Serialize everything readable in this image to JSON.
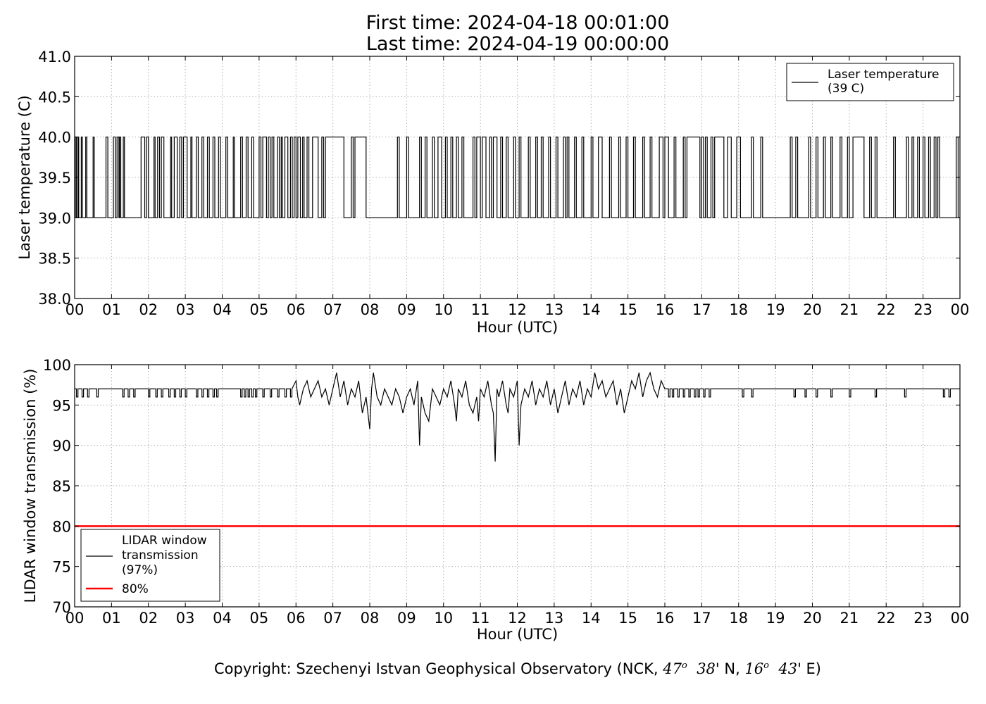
{
  "title": {
    "line1": "First time: 2024-04-18 00:01:00",
    "line2": "Last time: 2024-04-19 00:00:00"
  },
  "footer": {
    "text": "Copyright: Szechenyi Istvan Geophysical Observatory (NCK, 47° 38' N, 16° 43' E)",
    "prefix": "Copyright: Szechenyi Istvan Geophysical Observatory (NCK, ",
    "lat_deg": "47",
    "lat_min": "38' N, ",
    "lon_deg": "16",
    "lon_min": "43' E)",
    "degree_mark": "o"
  },
  "colors": {
    "series": "#000000",
    "threshold": "#ff0000",
    "grid": "#b0b0b0"
  },
  "chart_data": [
    {
      "type": "line",
      "name": "laser-temperature-panel",
      "xlabel": "Hour (UTC)",
      "ylabel": "Laser temperature (C)",
      "xlim": [
        0,
        24
      ],
      "ylim": [
        38.0,
        41.0
      ],
      "x_ticks": [
        "00",
        "01",
        "02",
        "03",
        "04",
        "05",
        "06",
        "07",
        "08",
        "09",
        "10",
        "11",
        "12",
        "13",
        "14",
        "15",
        "16",
        "17",
        "18",
        "19",
        "20",
        "21",
        "22",
        "23",
        "00"
      ],
      "y_ticks": [
        "38.0",
        "38.5",
        "39.0",
        "39.5",
        "40.0",
        "40.5",
        "41.0"
      ],
      "grid": true,
      "legend_position": "top-right",
      "legend": [
        "Laser temperature",
        "(39 C)"
      ],
      "series": [
        {
          "name": "Laser temperature (39 C)",
          "color": "#000000",
          "baseline": 39.0,
          "high": 40.0,
          "high_intervals": [
            [
              0.02,
              0.05
            ],
            [
              0.09,
              0.11
            ],
            [
              0.18,
              0.21
            ],
            [
              0.3,
              0.33
            ],
            [
              0.5,
              0.53
            ],
            [
              0.85,
              0.9
            ],
            [
              1.05,
              1.1
            ],
            [
              1.15,
              1.2
            ],
            [
              1.22,
              1.25
            ],
            [
              1.32,
              1.35
            ],
            [
              1.8,
              1.9
            ],
            [
              1.95,
              2.0
            ],
            [
              2.15,
              2.18
            ],
            [
              2.25,
              2.3
            ],
            [
              2.35,
              2.42
            ],
            [
              2.6,
              2.63
            ],
            [
              2.7,
              2.78
            ],
            [
              2.85,
              2.9
            ],
            [
              2.95,
              3.05
            ],
            [
              3.15,
              3.18
            ],
            [
              3.3,
              3.35
            ],
            [
              3.45,
              3.5
            ],
            [
              3.6,
              3.65
            ],
            [
              3.75,
              3.8
            ],
            [
              3.9,
              3.95
            ],
            [
              4.1,
              4.15
            ],
            [
              4.3,
              4.33
            ],
            [
              4.5,
              4.55
            ],
            [
              4.65,
              4.7
            ],
            [
              4.8,
              4.85
            ],
            [
              5.0,
              5.05
            ],
            [
              5.1,
              5.2
            ],
            [
              5.25,
              5.3
            ],
            [
              5.35,
              5.4
            ],
            [
              5.5,
              5.55
            ],
            [
              5.6,
              5.63
            ],
            [
              5.7,
              5.78
            ],
            [
              5.85,
              5.9
            ],
            [
              5.95,
              6.0
            ],
            [
              6.05,
              6.12
            ],
            [
              6.18,
              6.22
            ],
            [
              6.3,
              6.35
            ],
            [
              6.45,
              6.6
            ],
            [
              6.7,
              6.75
            ],
            [
              6.8,
              7.3
            ],
            [
              7.5,
              7.55
            ],
            [
              7.6,
              7.9
            ],
            [
              8.75,
              8.8
            ],
            [
              9.0,
              9.05
            ],
            [
              9.35,
              9.4
            ],
            [
              9.5,
              9.55
            ],
            [
              9.7,
              9.75
            ],
            [
              9.85,
              9.95
            ],
            [
              10.05,
              10.1
            ],
            [
              10.2,
              10.25
            ],
            [
              10.35,
              10.4
            ],
            [
              10.5,
              10.55
            ],
            [
              10.8,
              10.85
            ],
            [
              10.9,
              11.0
            ],
            [
              11.05,
              11.15
            ],
            [
              11.25,
              11.3
            ],
            [
              11.35,
              11.45
            ],
            [
              11.55,
              11.6
            ],
            [
              11.7,
              11.75
            ],
            [
              11.9,
              11.95
            ],
            [
              12.05,
              12.1
            ],
            [
              12.3,
              12.35
            ],
            [
              12.5,
              12.55
            ],
            [
              12.65,
              12.7
            ],
            [
              12.85,
              12.9
            ],
            [
              13.05,
              13.1
            ],
            [
              13.25,
              13.3
            ],
            [
              13.35,
              13.4
            ],
            [
              13.55,
              13.6
            ],
            [
              13.75,
              13.8
            ],
            [
              14.0,
              14.05
            ],
            [
              14.2,
              14.3
            ],
            [
              14.5,
              14.55
            ],
            [
              14.75,
              14.8
            ],
            [
              14.95,
              15.0
            ],
            [
              15.15,
              15.2
            ],
            [
              15.4,
              15.45
            ],
            [
              15.6,
              15.65
            ],
            [
              15.85,
              15.95
            ],
            [
              16.0,
              16.1
            ],
            [
              16.25,
              16.3
            ],
            [
              16.5,
              16.55
            ],
            [
              16.6,
              16.95
            ],
            [
              17.0,
              17.05
            ],
            [
              17.1,
              17.15
            ],
            [
              17.25,
              17.3
            ],
            [
              17.35,
              17.6
            ],
            [
              17.7,
              17.8
            ],
            [
              17.95,
              18.05
            ],
            [
              18.35,
              18.4
            ],
            [
              18.6,
              18.65
            ],
            [
              19.4,
              19.45
            ],
            [
              19.55,
              19.6
            ],
            [
              19.9,
              19.95
            ],
            [
              20.1,
              20.15
            ],
            [
              20.3,
              20.35
            ],
            [
              20.5,
              20.55
            ],
            [
              20.75,
              20.8
            ],
            [
              20.95,
              21.0
            ],
            [
              21.1,
              21.4
            ],
            [
              21.55,
              21.6
            ],
            [
              21.7,
              21.75
            ],
            [
              22.2,
              22.25
            ],
            [
              22.55,
              22.6
            ],
            [
              22.7,
              22.75
            ],
            [
              22.85,
              22.9
            ],
            [
              23.0,
              23.05
            ],
            [
              23.15,
              23.2
            ],
            [
              23.3,
              23.35
            ],
            [
              23.4,
              23.45
            ],
            [
              23.9,
              23.95
            ]
          ]
        }
      ]
    },
    {
      "type": "line",
      "name": "lidar-window-panel",
      "xlabel": "Hour (UTC)",
      "ylabel": "LIDAR window transmission (%)",
      "xlim": [
        0,
        24
      ],
      "ylim": [
        70,
        100
      ],
      "x_ticks": [
        "00",
        "01",
        "02",
        "03",
        "04",
        "05",
        "06",
        "07",
        "08",
        "09",
        "10",
        "11",
        "12",
        "13",
        "14",
        "15",
        "16",
        "17",
        "18",
        "19",
        "20",
        "21",
        "22",
        "23",
        "00"
      ],
      "y_ticks": [
        "70",
        "75",
        "80",
        "85",
        "90",
        "95",
        "100"
      ],
      "grid": true,
      "legend_position": "bottom-left",
      "legend": [
        "LIDAR window",
        "transmission",
        "(97%)",
        "80%"
      ],
      "series": [
        {
          "name": "LIDAR window transmission (97%)",
          "color": "#000000",
          "baseline": 97,
          "dips_to_96": [
            0.05,
            0.2,
            0.35,
            0.6,
            1.3,
            1.45,
            1.6,
            2.0,
            2.2,
            2.35,
            2.55,
            2.7,
            2.85,
            3.0,
            3.3,
            3.45,
            3.6,
            3.75,
            3.85,
            4.5,
            4.6,
            4.7,
            4.8,
            4.9,
            5.1,
            5.3,
            5.5,
            5.7,
            5.85,
            16.1,
            16.2,
            16.35,
            16.5,
            16.65,
            16.8,
            16.9,
            17.05,
            17.2,
            18.1,
            18.35,
            19.5,
            19.8,
            20.1,
            20.5,
            21.0,
            21.7,
            22.5,
            23.55,
            23.7
          ],
          "active_points": [
            [
              6.0,
              98
            ],
            [
              6.05,
              96
            ],
            [
              6.1,
              95
            ],
            [
              6.2,
              97
            ],
            [
              6.3,
              98
            ],
            [
              6.4,
              96
            ],
            [
              6.5,
              97
            ],
            [
              6.6,
              98
            ],
            [
              6.7,
              96
            ],
            [
              6.8,
              97
            ],
            [
              6.9,
              95
            ],
            [
              7.0,
              97
            ],
            [
              7.1,
              99
            ],
            [
              7.2,
              96
            ],
            [
              7.3,
              98
            ],
            [
              7.4,
              95
            ],
            [
              7.5,
              97
            ],
            [
              7.6,
              96
            ],
            [
              7.7,
              98
            ],
            [
              7.8,
              94
            ],
            [
              7.9,
              96
            ],
            [
              8.0,
              92
            ],
            [
              8.05,
              97
            ],
            [
              8.1,
              99
            ],
            [
              8.2,
              96
            ],
            [
              8.3,
              95
            ],
            [
              8.4,
              97
            ],
            [
              8.5,
              96
            ],
            [
              8.6,
              95
            ],
            [
              8.7,
              97
            ],
            [
              8.8,
              96
            ],
            [
              8.9,
              94
            ],
            [
              9.0,
              96
            ],
            [
              9.1,
              97
            ],
            [
              9.2,
              95
            ],
            [
              9.3,
              98
            ],
            [
              9.35,
              90
            ],
            [
              9.4,
              96
            ],
            [
              9.5,
              94
            ],
            [
              9.6,
              93
            ],
            [
              9.7,
              97
            ],
            [
              9.8,
              96
            ],
            [
              9.9,
              95
            ],
            [
              10.0,
              97
            ],
            [
              10.1,
              96
            ],
            [
              10.2,
              98
            ],
            [
              10.3,
              95
            ],
            [
              10.35,
              93
            ],
            [
              10.4,
              97
            ],
            [
              10.5,
              96
            ],
            [
              10.6,
              98
            ],
            [
              10.7,
              95
            ],
            [
              10.8,
              94
            ],
            [
              10.9,
              96
            ],
            [
              10.95,
              93
            ],
            [
              11.0,
              97
            ],
            [
              11.1,
              96
            ],
            [
              11.2,
              98
            ],
            [
              11.3,
              95
            ],
            [
              11.35,
              94
            ],
            [
              11.4,
              88
            ],
            [
              11.45,
              97
            ],
            [
              11.5,
              96
            ],
            [
              11.6,
              98
            ],
            [
              11.7,
              95
            ],
            [
              11.75,
              94
            ],
            [
              11.8,
              97
            ],
            [
              11.9,
              96
            ],
            [
              12.0,
              98
            ],
            [
              12.05,
              90
            ],
            [
              12.1,
              95
            ],
            [
              12.2,
              97
            ],
            [
              12.3,
              96
            ],
            [
              12.4,
              98
            ],
            [
              12.5,
              95
            ],
            [
              12.6,
              97
            ],
            [
              12.7,
              96
            ],
            [
              12.8,
              98
            ],
            [
              12.9,
              95
            ],
            [
              13.0,
              97
            ],
            [
              13.1,
              94
            ],
            [
              13.2,
              96
            ],
            [
              13.3,
              98
            ],
            [
              13.4,
              95
            ],
            [
              13.5,
              97
            ],
            [
              13.6,
              96
            ],
            [
              13.7,
              98
            ],
            [
              13.8,
              95
            ],
            [
              13.9,
              97
            ],
            [
              14.0,
              96
            ],
            [
              14.1,
              99
            ],
            [
              14.2,
              97
            ],
            [
              14.3,
              98
            ],
            [
              14.4,
              96
            ],
            [
              14.5,
              97
            ],
            [
              14.6,
              98
            ],
            [
              14.7,
              95
            ],
            [
              14.8,
              97
            ],
            [
              14.9,
              94
            ],
            [
              15.0,
              96
            ],
            [
              15.1,
              98
            ],
            [
              15.2,
              97
            ],
            [
              15.3,
              99
            ],
            [
              15.4,
              96
            ],
            [
              15.5,
              98
            ],
            [
              15.6,
              99
            ],
            [
              15.7,
              97
            ],
            [
              15.8,
              96
            ],
            [
              15.9,
              98
            ],
            [
              16.0,
              97
            ]
          ]
        },
        {
          "name": "80%",
          "color": "#ff0000",
          "constant": 80
        }
      ]
    }
  ]
}
